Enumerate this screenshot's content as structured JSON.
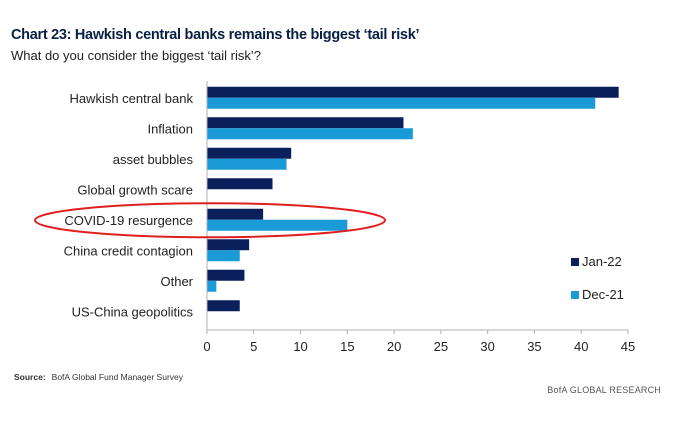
{
  "chart_data": {
    "type": "bar",
    "orientation": "horizontal",
    "title": "Chart 23: Hawkish central banks remains the biggest ‘tail risk’",
    "subtitle": "What do you consider the biggest ‘tail risk’?",
    "categories": [
      "Hawkish central bank",
      "Inflation",
      "asset bubbles",
      "Global growth scare",
      "COVID-19 resurgence",
      "China credit contagion",
      "Other",
      "US-China geopolitics"
    ],
    "series": [
      {
        "name": "Jan-22",
        "color": "#0b1f5c",
        "values": [
          44,
          21,
          9,
          7,
          6,
          4.5,
          4,
          3.5
        ]
      },
      {
        "name": "Dec-21",
        "color": "#1a9ad6",
        "values": [
          41.5,
          22,
          8.5,
          null,
          15,
          3.5,
          1,
          null
        ]
      }
    ],
    "xlim": [
      0,
      45
    ],
    "xticks": [
      "0",
      "5",
      "10",
      "15",
      "20",
      "25",
      "30",
      "35",
      "40",
      "45"
    ],
    "grid": false,
    "legend_position": "right",
    "highlight": {
      "category": "COVID-19 resurgence",
      "color": "#e02020"
    }
  },
  "footer": {
    "source_label": "Source:",
    "source_text": "BofA Global Fund Manager Survey",
    "brand": "BofA GLOBAL RESEARCH"
  }
}
